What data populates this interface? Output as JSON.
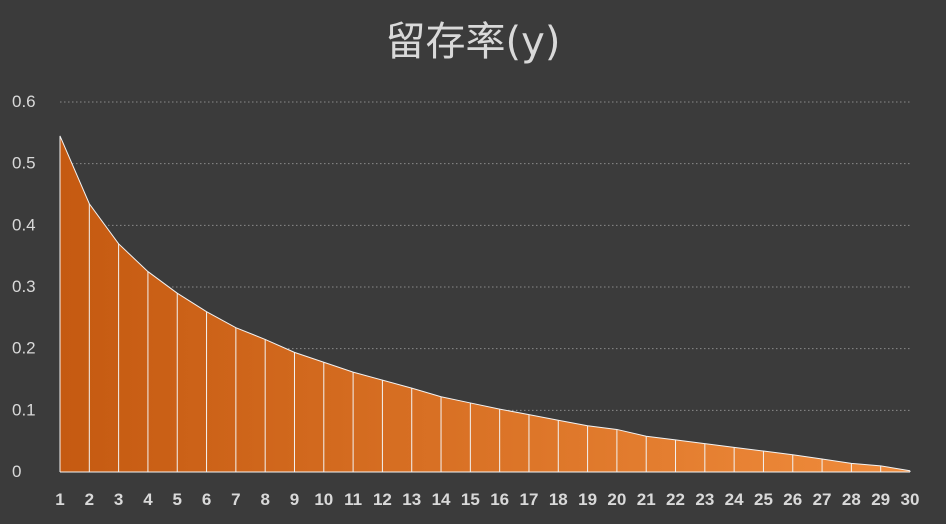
{
  "chart_data": {
    "type": "area",
    "title": "留存率(y)",
    "xlabel": "",
    "ylabel": "",
    "x": [
      1,
      2,
      3,
      4,
      5,
      6,
      7,
      8,
      9,
      10,
      11,
      12,
      13,
      14,
      15,
      16,
      17,
      18,
      19,
      20,
      21,
      22,
      23,
      24,
      25,
      26,
      27,
      28,
      29,
      30
    ],
    "series": [
      {
        "values": [
          0.545,
          0.435,
          0.37,
          0.325,
          0.29,
          0.26,
          0.234,
          0.215,
          0.194,
          0.178,
          0.162,
          0.149,
          0.136,
          0.122,
          0.112,
          0.102,
          0.093,
          0.084,
          0.075,
          0.069,
          0.058,
          0.052,
          0.046,
          0.04,
          0.034,
          0.028,
          0.021,
          0.014,
          0.01,
          0.002
        ]
      }
    ],
    "ylim": [
      0,
      0.6
    ],
    "yticks": [
      "0",
      "0.1",
      "0.2",
      "0.3",
      "0.4",
      "0.5",
      "0.6"
    ],
    "xticks": [
      "1",
      "2",
      "3",
      "4",
      "5",
      "6",
      "7",
      "8",
      "9",
      "10",
      "11",
      "12",
      "13",
      "14",
      "15",
      "16",
      "17",
      "18",
      "19",
      "20",
      "21",
      "22",
      "23",
      "24",
      "25",
      "26",
      "27",
      "28",
      "29",
      "30"
    ],
    "grid": true,
    "legend": "none",
    "colors": {
      "fill_start": "#c55a11",
      "fill_end": "#f08c3c",
      "background": "#3b3b3b",
      "grid": "#8a8a8a",
      "text": "#d9d9d9",
      "divider": "#f3f3f3"
    }
  }
}
